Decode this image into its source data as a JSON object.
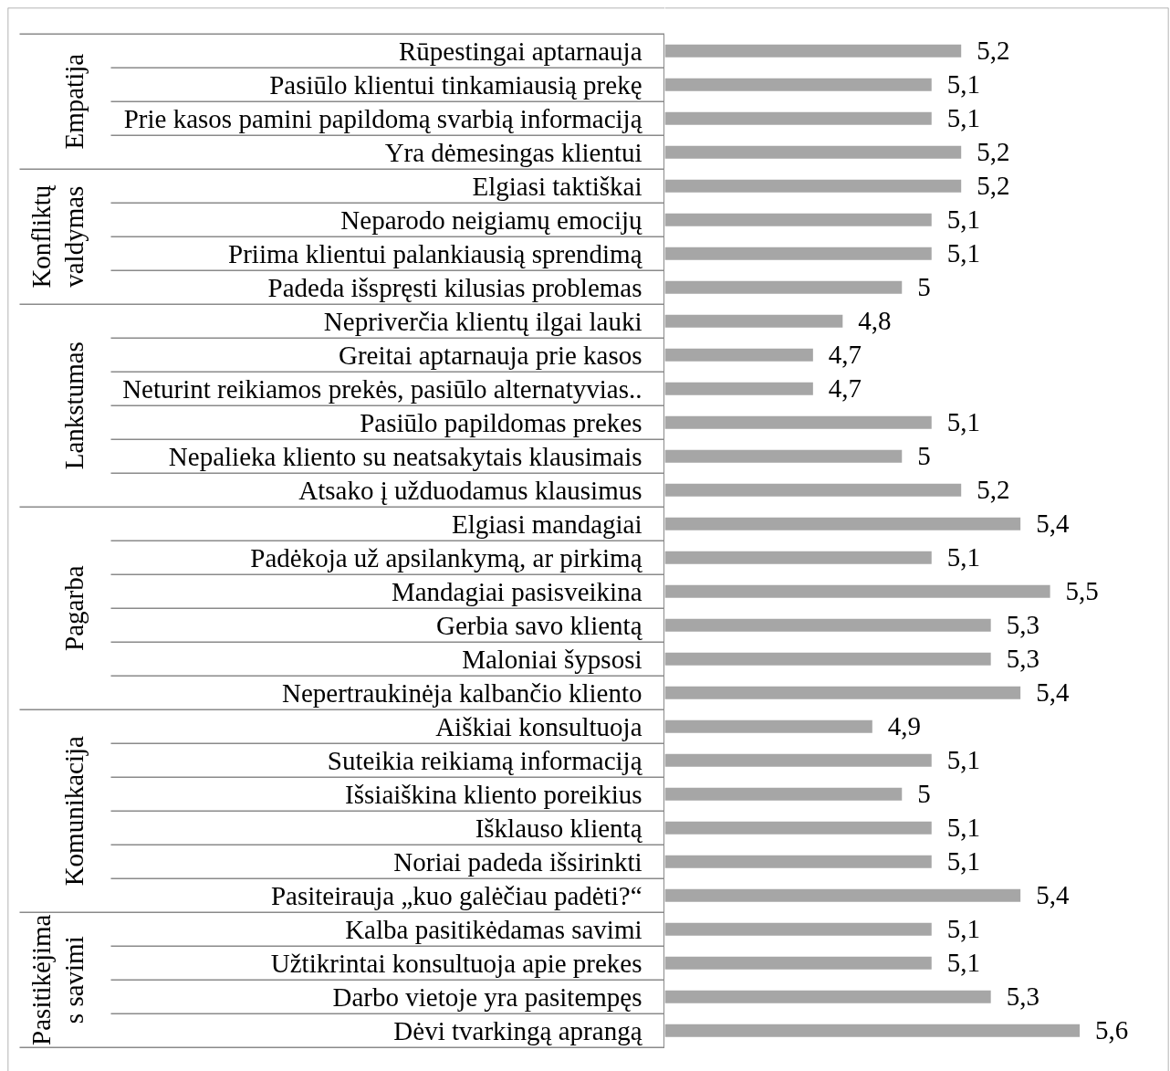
{
  "chart_data": {
    "type": "bar",
    "orientation": "horizontal",
    "categories": [
      "Rūpestingai aptarnauja",
      "Pasiūlo klientui tinkamiausią prekę",
      "Prie kasos pamini papildomą svarbią informaciją",
      "Yra dėmesingas klientui",
      "Elgiasi taktiškai",
      "Neparodo neigiamų emocijų",
      "Priima klientui palankiausią sprendimą",
      "Padeda išspręsti kilusias problemas",
      "Nepriverčia klientų ilgai lauki",
      "Greitai aptarnauja prie kasos",
      "Neturint reikiamos prekės, pasiūlo alternatyvias..",
      "Pasiūlo papildomas prekes",
      "Nepalieka kliento su neatsakytais klausimais",
      "Atsako į užduodamus klausimus",
      "Elgiasi mandagiai",
      "Padėkoja už apsilankymą, ar pirkimą",
      "Mandagiai pasisveikina",
      "Gerbia savo klientą",
      "Maloniai šypsosi",
      "Nepertraukinėja kalbančio kliento",
      "Aiškiai konsultuoja",
      "Suteikia reikiamą informaciją",
      "Išsiaiškina kliento poreikius",
      "Išklauso klientą",
      "Noriai padeda išsirinkti",
      "Pasiteirauja „kuo galėčiau padėti?“",
      "Kalba pasitikėdamas savimi",
      "Užtikrintai konsultuoja apie prekes",
      "Darbo vietoje yra pasitempęs",
      "Dėvi tvarkingą aprangą"
    ],
    "series": [
      {
        "color": "#a6a6a6",
        "values": [
          5.2,
          5.1,
          5.1,
          5.2,
          null,
          null,
          null,
          null,
          null,
          null,
          null,
          null,
          null,
          null,
          null,
          null,
          null,
          null,
          null,
          null,
          null,
          null,
          null,
          null,
          null,
          null,
          null,
          null,
          null,
          null
        ],
        "value_labels": [
          "5,2",
          "5,1",
          "5,1",
          "5,2",
          null,
          null,
          null,
          null,
          null,
          null,
          null,
          null,
          null,
          null,
          null,
          null,
          null,
          null,
          null,
          null,
          null,
          null,
          null,
          null,
          null,
          null,
          null,
          null,
          null,
          null
        ]
      },
      {
        "color": "#a6a6a6",
        "values": [
          null,
          null,
          null,
          null,
          5.2,
          5.1,
          5.1,
          5.0,
          null,
          null,
          null,
          null,
          null,
          null,
          null,
          null,
          null,
          null,
          null,
          null,
          null,
          null,
          null,
          null,
          null,
          null,
          null,
          null,
          null,
          null
        ],
        "value_labels": [
          null,
          null,
          null,
          null,
          "5,2",
          "5,1",
          "5,1",
          "5",
          null,
          null,
          null,
          null,
          null,
          null,
          null,
          null,
          null,
          null,
          null,
          null,
          null,
          null,
          null,
          null,
          null,
          null,
          null,
          null,
          null,
          null
        ]
      },
      {
        "color": "#a6a6a6",
        "values": [
          null,
          null,
          null,
          null,
          null,
          null,
          null,
          null,
          4.8,
          4.7,
          4.7,
          5.1,
          5.0,
          5.2,
          null,
          null,
          null,
          null,
          null,
          null,
          null,
          null,
          null,
          null,
          null,
          null,
          null,
          null,
          null,
          null
        ],
        "value_labels": [
          null,
          null,
          null,
          null,
          null,
          null,
          null,
          null,
          "4,8",
          "4,7",
          "4,7",
          "5,1",
          "5",
          "5,2",
          null,
          null,
          null,
          null,
          null,
          null,
          null,
          null,
          null,
          null,
          null,
          null,
          null,
          null,
          null,
          null
        ]
      },
      {
        "color": "#a6a6a6",
        "values": [
          null,
          null,
          null,
          null,
          null,
          null,
          null,
          null,
          null,
          null,
          null,
          null,
          null,
          null,
          5.4,
          5.1,
          5.5,
          5.3,
          5.3,
          5.4,
          null,
          null,
          null,
          null,
          null,
          null,
          null,
          null,
          null,
          null
        ],
        "value_labels": [
          null,
          null,
          null,
          null,
          null,
          null,
          null,
          null,
          null,
          null,
          null,
          null,
          null,
          null,
          "5,4",
          "5,1",
          "5,5",
          "5,3",
          "5,3",
          "5,4",
          null,
          null,
          null,
          null,
          null,
          null,
          null,
          null,
          null,
          null
        ]
      },
      {
        "color": "#a6a6a6",
        "values": [
          null,
          null,
          null,
          null,
          null,
          null,
          null,
          null,
          null,
          null,
          null,
          null,
          null,
          null,
          null,
          null,
          null,
          null,
          null,
          null,
          4.9,
          5.1,
          5.0,
          5.1,
          5.1,
          5.4,
          null,
          null,
          null,
          null
        ],
        "value_labels": [
          null,
          null,
          null,
          null,
          null,
          null,
          null,
          null,
          null,
          null,
          null,
          null,
          null,
          null,
          null,
          null,
          null,
          null,
          null,
          null,
          "4,9",
          "5,1",
          "5",
          "5,1",
          "5,1",
          "5,4",
          null,
          null,
          null,
          null
        ]
      },
      {
        "color": "#a6a6a6",
        "values": [
          null,
          null,
          null,
          null,
          null,
          null,
          null,
          null,
          null,
          null,
          null,
          null,
          null,
          null,
          null,
          null,
          null,
          null,
          null,
          null,
          null,
          null,
          null,
          null,
          null,
          null,
          5.1,
          5.1,
          5.3,
          5.6
        ],
        "value_labels": [
          null,
          null,
          null,
          null,
          null,
          null,
          null,
          null,
          null,
          null,
          null,
          null,
          null,
          null,
          null,
          null,
          null,
          null,
          null,
          null,
          null,
          null,
          null,
          null,
          null,
          null,
          "5,1",
          "5,1",
          "5,3",
          "5,6"
        ]
      }
    ],
    "annotations": [
      "Empatija",
      "Konfliktų\nvaldymas",
      "Lankstumas",
      "Pagarba",
      "Komunikacija",
      "Pasitikėjima\ns savimi"
    ],
    "xlim": [
      4.2,
      5.9
    ],
    "tick_labels": "y"
  }
}
